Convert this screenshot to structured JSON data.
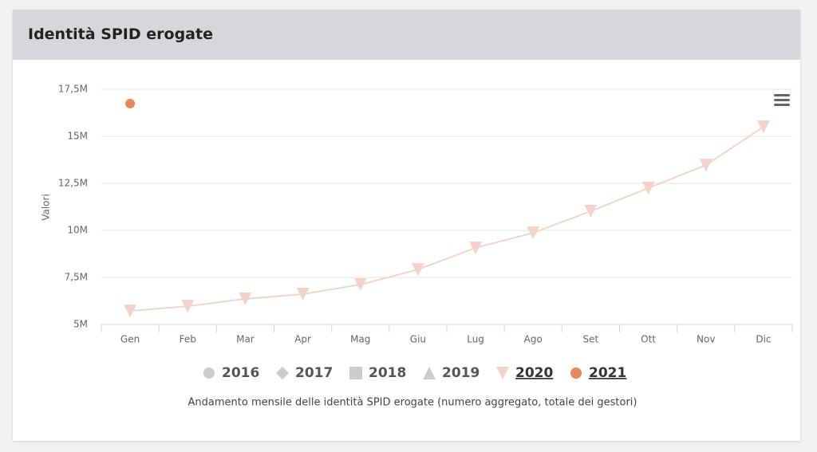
{
  "header": {
    "title": "Identità SPID erogate"
  },
  "chart_data": {
    "type": "line",
    "y_axis_label": "Valori",
    "caption": "Andamento mensile delle identità SPID erogate (numero aggregato, totale dei gestori)",
    "categories": [
      "Gen",
      "Feb",
      "Mar",
      "Apr",
      "Mag",
      "Giu",
      "Lug",
      "Ago",
      "Set",
      "Ott",
      "Nov",
      "Dic"
    ],
    "ylim": [
      5,
      17.5
    ],
    "yticks": [
      {
        "value": 5,
        "label": "5M"
      },
      {
        "value": 7.5,
        "label": "7,5M"
      },
      {
        "value": 10,
        "label": "10M"
      },
      {
        "value": 12.5,
        "label": "12,5M"
      },
      {
        "value": 15,
        "label": "15M"
      },
      {
        "value": 17.5,
        "label": "17,5M"
      }
    ],
    "grid": true,
    "legend": "bottom",
    "series": [
      {
        "name": "2016",
        "color": "#cccccc",
        "marker": "circle",
        "visible": false,
        "values": [
          null,
          null,
          null,
          null,
          null,
          null,
          null,
          null,
          null,
          null,
          null,
          null
        ]
      },
      {
        "name": "2017",
        "color": "#cccccc",
        "marker": "diamond",
        "visible": false,
        "values": [
          null,
          null,
          null,
          null,
          null,
          null,
          null,
          null,
          null,
          null,
          null,
          null
        ]
      },
      {
        "name": "2018",
        "color": "#cccccc",
        "marker": "square",
        "visible": false,
        "values": [
          null,
          null,
          null,
          null,
          null,
          null,
          null,
          null,
          null,
          null,
          null,
          null
        ]
      },
      {
        "name": "2019",
        "color": "#cccccc",
        "marker": "triangle",
        "visible": false,
        "values": [
          null,
          null,
          null,
          null,
          null,
          null,
          null,
          null,
          null,
          null,
          null,
          null
        ]
      },
      {
        "name": "2020",
        "color": "#f2d3ca",
        "marker": "triangle-down",
        "visible": true,
        "values": [
          5.72,
          5.97,
          6.36,
          6.61,
          7.12,
          7.92,
          9.07,
          9.87,
          11.02,
          12.25,
          13.47,
          15.51
        ]
      },
      {
        "name": "2021",
        "color": "#e8875f",
        "marker": "circle",
        "visible": true,
        "values": [
          16.74,
          null,
          null,
          null,
          null,
          null,
          null,
          null,
          null,
          null,
          null,
          null
        ]
      }
    ]
  }
}
